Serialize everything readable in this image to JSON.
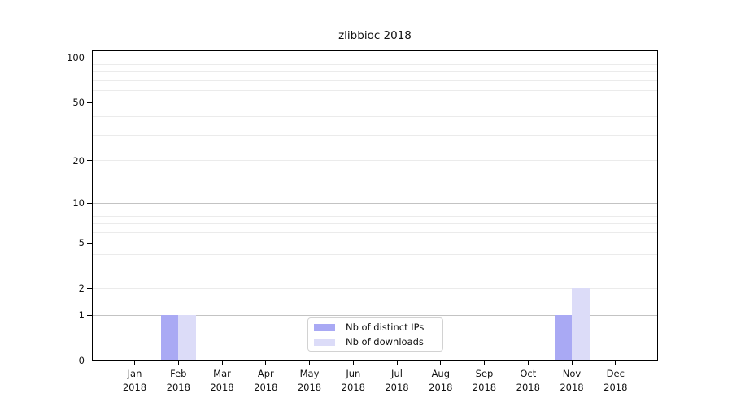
{
  "chart_data": {
    "type": "bar",
    "title": "zlibbioc 2018",
    "categories": [
      "Jan 2018",
      "Feb 2018",
      "Mar 2018",
      "Apr 2018",
      "May 2018",
      "Jun 2018",
      "Jul 2018",
      "Aug 2018",
      "Sep 2018",
      "Oct 2018",
      "Nov 2018",
      "Dec 2018"
    ],
    "month_labels": [
      "Jan",
      "Feb",
      "Mar",
      "Apr",
      "May",
      "Jun",
      "Jul",
      "Aug",
      "Sep",
      "Oct",
      "Nov",
      "Dec"
    ],
    "year_label": "2018",
    "series": [
      {
        "name": "Nb of distinct IPs",
        "color": "#a9a9f4",
        "values": [
          0,
          1,
          0,
          0,
          0,
          0,
          0,
          0,
          0,
          0,
          1,
          0
        ]
      },
      {
        "name": "Nb of downloads",
        "color": "#dcdcf8",
        "values": [
          0,
          1,
          0,
          0,
          0,
          0,
          0,
          0,
          0,
          0,
          2,
          0
        ]
      }
    ],
    "y_axis": {
      "scale": "log1p",
      "ticks": [
        0,
        1,
        2,
        5,
        10,
        20,
        50,
        100
      ],
      "major_gridlines": [
        1,
        10,
        100
      ],
      "minor_gridlines": [
        2,
        3,
        4,
        6,
        7,
        8,
        9,
        20,
        30,
        40,
        60,
        70,
        80,
        90
      ],
      "ylim": [
        0,
        112
      ]
    },
    "x_axis": {
      "label_line2_shared": "2018"
    },
    "grid": true,
    "legend_position": "lower-center",
    "colors": {
      "background": "#ffffff",
      "axis": "#000000",
      "major_grid": "#c3c3c3",
      "minor_grid": "#ebebeb",
      "text": "#111111"
    }
  }
}
